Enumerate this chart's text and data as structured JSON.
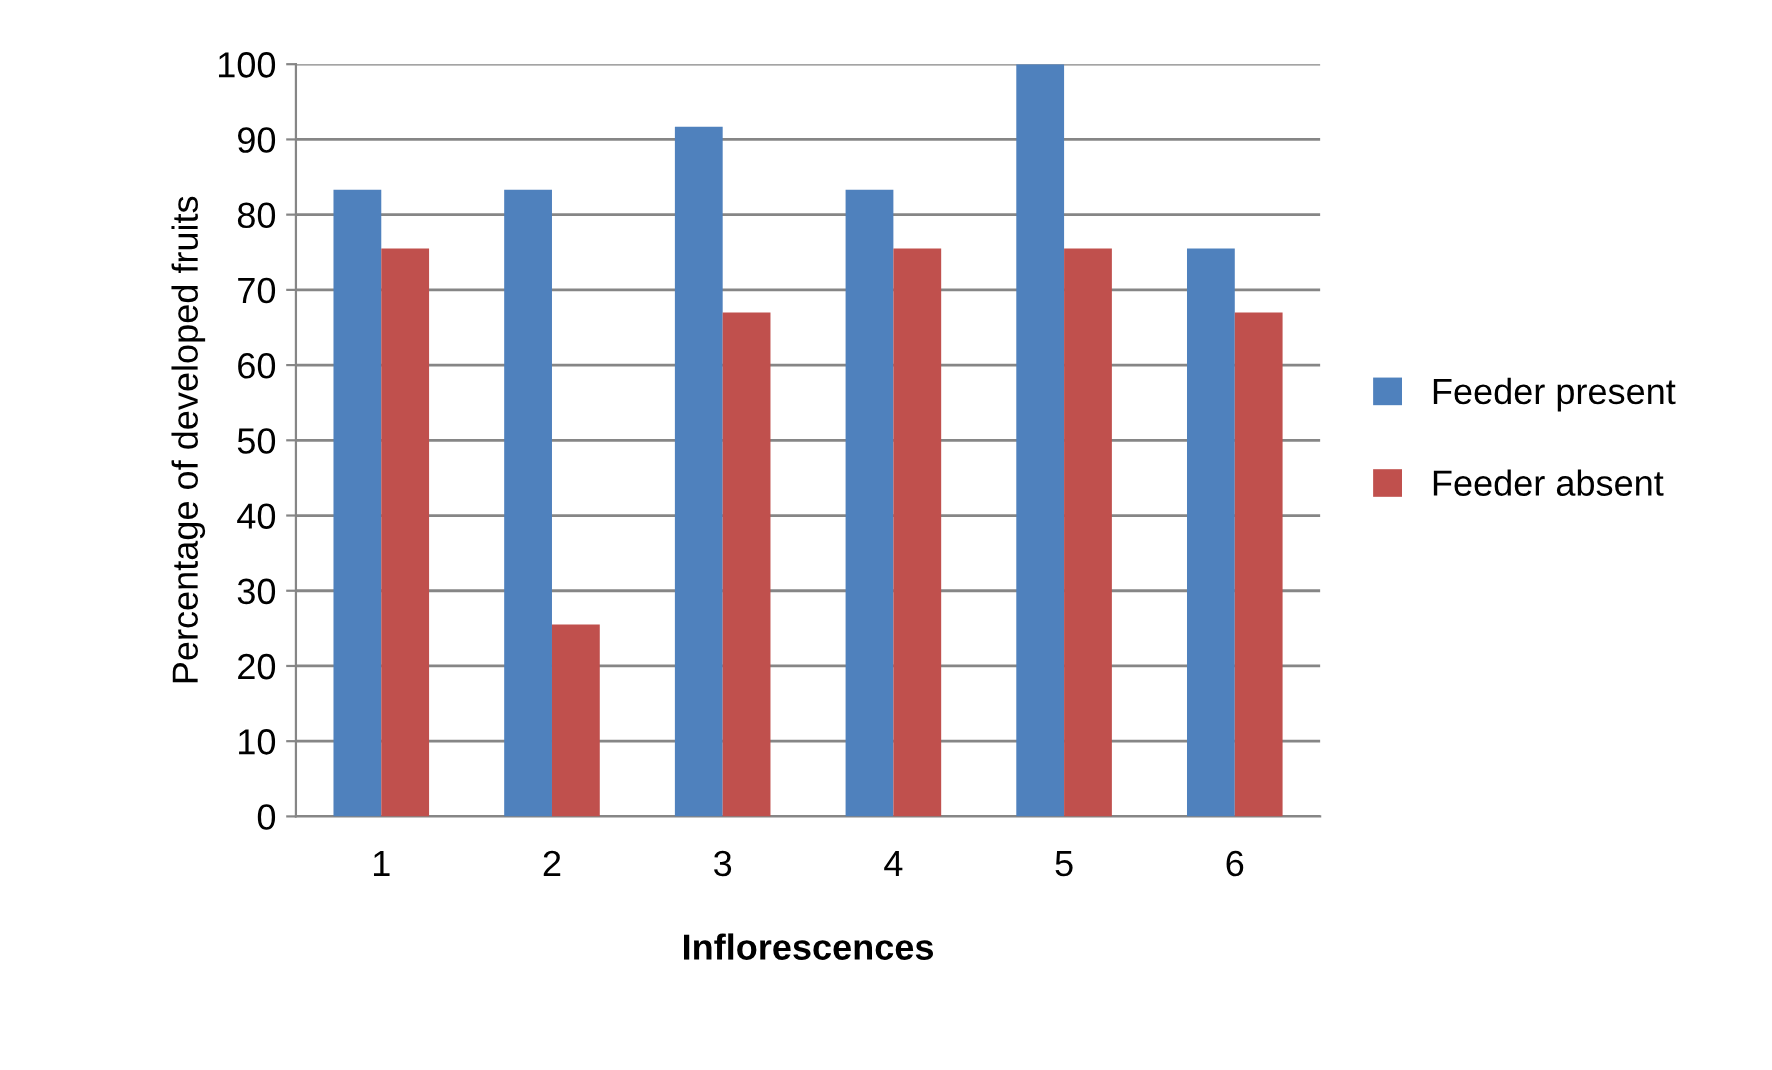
{
  "chart_data": {
    "type": "bar",
    "xlabel": "Inflorescences",
    "ylabel": "Percentage of developed fruits",
    "categories": [
      "1",
      "2",
      "3",
      "4",
      "5",
      "6"
    ],
    "series": [
      {
        "name": "Feeder present",
        "color": "#4f81bd",
        "values": [
          83.3,
          83.3,
          91.7,
          83.3,
          100,
          75.5
        ]
      },
      {
        "name": "Feeder absent",
        "color": "#c0504d",
        "values": [
          75.5,
          25.5,
          67,
          75.5,
          75.5,
          67
        ]
      }
    ],
    "ylim": [
      0,
      100
    ],
    "yticks": [
      0,
      10,
      20,
      30,
      40,
      50,
      60,
      70,
      80,
      90,
      100
    ],
    "grid": "y",
    "legend": "right"
  }
}
